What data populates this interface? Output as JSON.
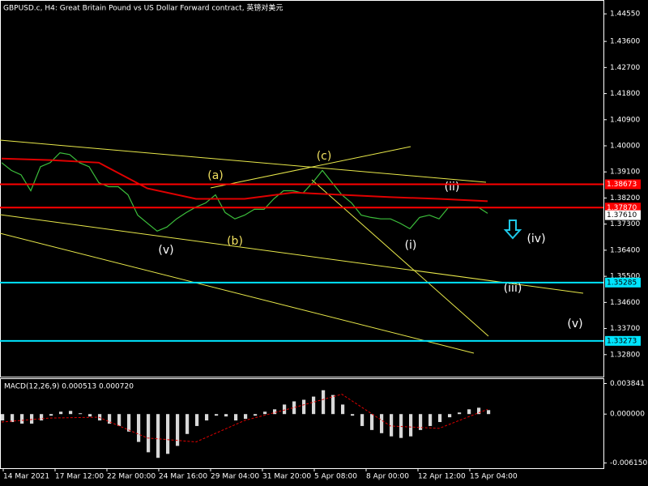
{
  "chart_data": [
    {
      "type": "line",
      "title": "GBPUSD.c, H4:  Great Britain Pound vs US Dollar Forward contract, 英镑对美元",
      "series": [
        {
          "color": "#3cbf3c",
          "values": [
            1.3942,
            1.3915,
            1.39,
            1.3845,
            1.3928,
            1.3942,
            1.3976,
            1.397,
            1.3942,
            1.3928,
            1.3873,
            1.3859,
            1.3859,
            1.3831,
            1.3761,
            1.3733,
            1.3706,
            1.372,
            1.3748,
            1.377,
            1.3789,
            1.3803,
            1.3831,
            1.377,
            1.3748,
            1.3761,
            1.3781,
            1.3781,
            1.3817,
            1.3845,
            1.3845,
            1.3837,
            1.3873,
            1.3915,
            1.3873,
            1.3831,
            1.3803,
            1.3761,
            1.3753,
            1.3748,
            1.3748,
            1.3733,
            1.3714,
            1.3753,
            1.3761,
            1.3748,
            1.3789,
            1.3789,
            1.3789,
            1.3789,
            1.3767
          ]
        },
        {
          "color": "#e00000",
          "values": [
            1.3956,
            1.3951,
            1.3942,
            1.3853,
            1.3817,
            1.3817,
            1.3839,
            1.3831,
            1.3823,
            1.3817,
            1.3809
          ]
        }
      ],
      "ylim": [
        1.3204,
        1.45
      ],
      "yticks": [
        {
          "value": 1.4455,
          "label": "1.44550"
        },
        {
          "value": 1.436,
          "label": "1.43600"
        },
        {
          "value": 1.427,
          "label": "1.42700"
        },
        {
          "value": 1.418,
          "label": "1.41800"
        },
        {
          "value": 1.409,
          "label": "1.40900"
        },
        {
          "value": 1.4,
          "label": "1.40000"
        },
        {
          "value": 1.391,
          "label": "1.39100"
        },
        {
          "value": 1.382,
          "label": "1.38200"
        },
        {
          "value": 1.373,
          "label": "1.37300"
        },
        {
          "value": 1.364,
          "label": "1.36400"
        },
        {
          "value": 1.355,
          "label": "1.35500"
        },
        {
          "value": 1.346,
          "label": "1.34600"
        },
        {
          "value": 1.337,
          "label": "1.33700"
        },
        {
          "value": 1.328,
          "label": "1.32800"
        }
      ],
      "levels": [
        {
          "value": 1.38673,
          "label": "1.38673",
          "color": "#ff0000"
        },
        {
          "value": 1.3787,
          "label": "1.37870",
          "color": "#ff0000"
        },
        {
          "value": 1.35285,
          "label": "1.35285",
          "color": "#00e5ff"
        },
        {
          "value": 1.33273,
          "label": "1.33273",
          "color": "#00e5ff"
        }
      ],
      "last_price": {
        "value": 1.3761,
        "label": "1.37610"
      },
      "xtick_labels": [
        "14 Mar 2021",
        "17 Mar 12:00",
        "22 Mar 00:00",
        "24 Mar 16:00",
        "29 Mar 04:00",
        "31 Mar 20:00",
        "5 Apr 08:00",
        "8 Apr 00:00",
        "12 Apr 12:00",
        "15 Apr 04:00"
      ],
      "annotations": [
        "(a)",
        "(b)",
        "(c)",
        "(v)",
        "(i)",
        "(ii)",
        "(iii)",
        "(iv)",
        "(v)"
      ]
    },
    {
      "type": "bar",
      "title": "MACD(12,26,9) 0.000513 0.000720",
      "values": [
        -0.0008,
        -0.001,
        -0.0012,
        -0.0012,
        -0.0008,
        -0.0002,
        0.0003,
        0.0004,
        0.0001,
        -0.0003,
        -0.0008,
        -0.0012,
        -0.0015,
        -0.0022,
        -0.0035,
        -0.0048,
        -0.0055,
        -0.005,
        -0.004,
        -0.0025,
        -0.0015,
        -0.0008,
        -0.0002,
        -0.0003,
        -0.0008,
        -0.0006,
        -0.0002,
        0.0003,
        0.0006,
        0.0012,
        0.0016,
        0.0018,
        0.0022,
        0.003,
        0.0024,
        0.0012,
        -0.0002,
        -0.0015,
        -0.002,
        -0.0024,
        -0.0028,
        -0.003,
        -0.0028,
        -0.002,
        -0.0015,
        -0.001,
        -0.0004,
        0.0002,
        0.0006,
        0.0008,
        0.0005
      ],
      "color": "#d8d8d8",
      "signal": {
        "color": "#e00000",
        "values": [
          -0.001,
          -0.0005,
          -0.0004,
          -0.003,
          -0.0035,
          -0.0008,
          0.0008,
          0.0025,
          -0.0015,
          -0.0018,
          0.0006
        ]
      },
      "ylim": [
        -0.0068,
        0.0044
      ],
      "yticks": [
        0.003841,
        {
          "value": 0,
          "label": "0.000000"
        },
        {
          "value": -0.00615,
          "label": "-0.006150"
        }
      ]
    }
  ]
}
